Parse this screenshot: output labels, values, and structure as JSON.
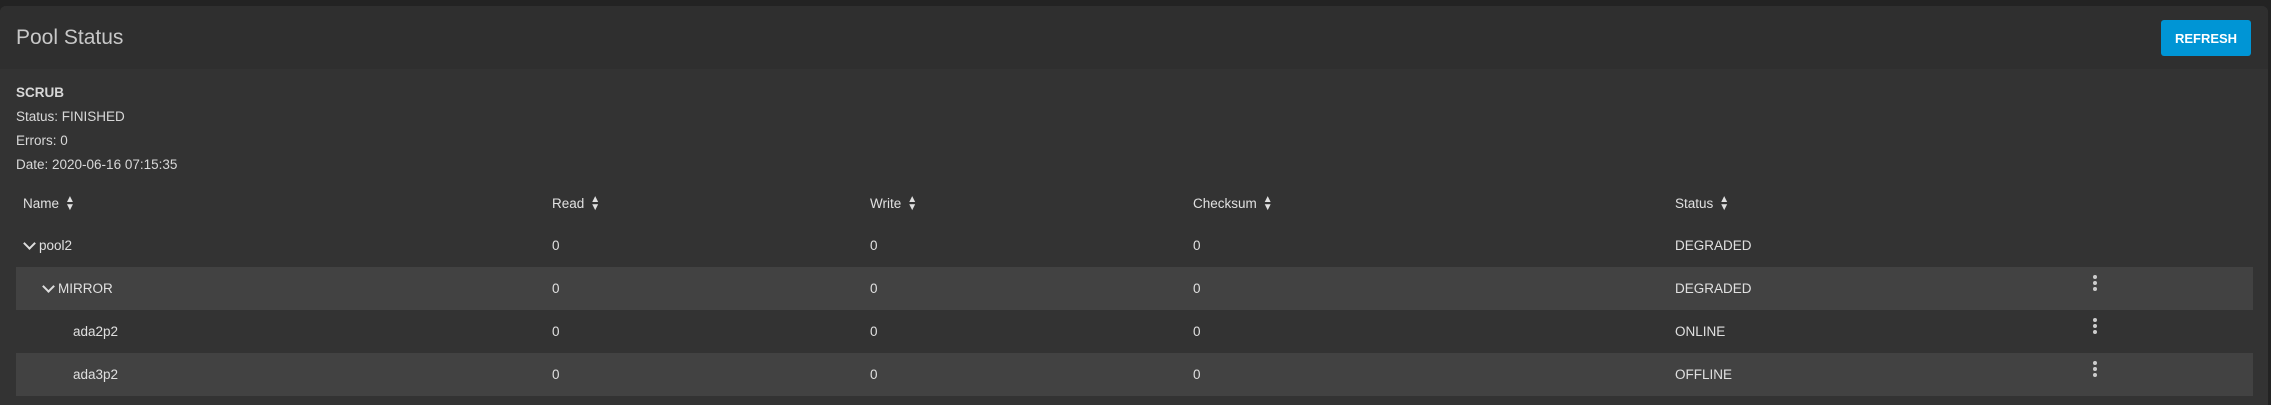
{
  "card": {
    "title": "Pool Status",
    "refresh_label": "REFRESH",
    "accent": "#0095d5"
  },
  "scrub": {
    "heading": "SCRUB",
    "status": "Status: FINISHED",
    "errors": "Errors: 0",
    "date": "Date: 2020-06-16 07:15:35"
  },
  "table": {
    "columns": [
      "Name",
      "Read",
      "Write",
      "Checksum",
      "Status"
    ],
    "rows": [
      {
        "name": "pool2",
        "read": "0",
        "write": "0",
        "checksum": "0",
        "status": "DEGRADED",
        "expanded": true,
        "has_menu": false
      },
      {
        "name": "MIRROR",
        "read": "0",
        "write": "0",
        "checksum": "0",
        "status": "DEGRADED",
        "expanded": true,
        "has_menu": true
      },
      {
        "name": "ada2p2",
        "read": "0",
        "write": "0",
        "checksum": "0",
        "status": "ONLINE",
        "has_menu": true
      },
      {
        "name": "ada3p2",
        "read": "0",
        "write": "0",
        "checksum": "0",
        "status": "OFFLINE",
        "has_menu": true
      }
    ]
  }
}
